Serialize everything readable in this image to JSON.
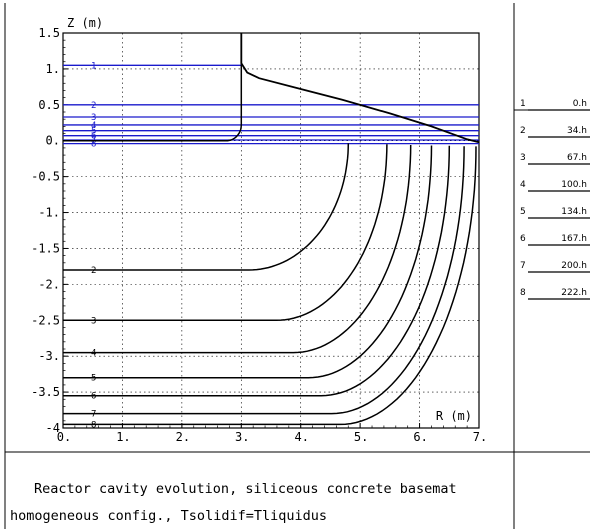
{
  "chart_data": {
    "type": "line",
    "xlabel": "R (m)",
    "ylabel": "Z (m)",
    "xlim": [
      0,
      7
    ],
    "ylim": [
      -4,
      1.5
    ],
    "x_ticks": [
      0,
      1,
      2,
      3,
      4,
      5,
      6,
      7
    ],
    "x_tick_labels": [
      "0.",
      "1.",
      "2.",
      "3.",
      "4.",
      "5.",
      "6.",
      "7."
    ],
    "y_ticks": [
      1.5,
      1,
      0.5,
      0,
      -0.5,
      -1,
      -1.5,
      -2,
      -2.5,
      -3,
      -3.5,
      -4
    ],
    "y_tick_labels": [
      "1.5",
      "1.",
      "0.5",
      "0.",
      "-0.5",
      "-1.",
      "-1.5",
      "-2.",
      "-2.5",
      "-3.",
      "-3.5",
      "-4"
    ],
    "grid": true,
    "melt_levels": [
      {
        "id": "1",
        "z": 1.05
      },
      {
        "id": "2",
        "z": 0.5
      },
      {
        "id": "3",
        "z": 0.33
      },
      {
        "id": "4",
        "z": 0.22
      },
      {
        "id": "5",
        "z": 0.14
      },
      {
        "id": "6",
        "z": 0.07
      },
      {
        "id": "7",
        "z": 0.01
      },
      {
        "id": "8",
        "z": -0.04
      }
    ],
    "cavity_profiles": [
      {
        "id": "1",
        "floor_z": 0.0,
        "wall_r": 3.0
      },
      {
        "id": "2",
        "floor_z": -1.8,
        "wall_r": 4.8
      },
      {
        "id": "3",
        "floor_z": -2.5,
        "wall_r": 5.45
      },
      {
        "id": "4",
        "floor_z": -2.95,
        "wall_r": 5.85
      },
      {
        "id": "5",
        "floor_z": -3.3,
        "wall_r": 6.2
      },
      {
        "id": "6",
        "floor_z": -3.55,
        "wall_r": 6.5
      },
      {
        "id": "7",
        "floor_z": -3.8,
        "wall_r": 6.75
      },
      {
        "id": "8",
        "floor_z": -3.95,
        "wall_r": 6.95
      }
    ],
    "pool_surface": [
      [
        3.0,
        1.5
      ],
      [
        3.0,
        1.08
      ],
      [
        3.1,
        0.95
      ],
      [
        3.3,
        0.87
      ],
      [
        4.0,
        0.72
      ],
      [
        4.7,
        0.57
      ],
      [
        5.5,
        0.38
      ],
      [
        6.2,
        0.2
      ],
      [
        6.8,
        0.02
      ],
      [
        7.0,
        -0.02
      ]
    ]
  },
  "legend": {
    "rows": [
      {
        "id": "1",
        "time": "0.h"
      },
      {
        "id": "2",
        "time": "34.h"
      },
      {
        "id": "3",
        "time": "67.h"
      },
      {
        "id": "4",
        "time": "100.h"
      },
      {
        "id": "5",
        "time": "134.h"
      },
      {
        "id": "6",
        "time": "167.h"
      },
      {
        "id": "7",
        "time": "200.h"
      },
      {
        "id": "8",
        "time": "222.h"
      }
    ]
  },
  "caption": {
    "line1": "Reactor cavity evolution, siliceous concrete basemat",
    "line2": "homogeneous config., Tsolidif=Tliquidus"
  },
  "colors": {
    "profile": "#000000",
    "level": "#1a1acc",
    "grid": "#000000"
  }
}
